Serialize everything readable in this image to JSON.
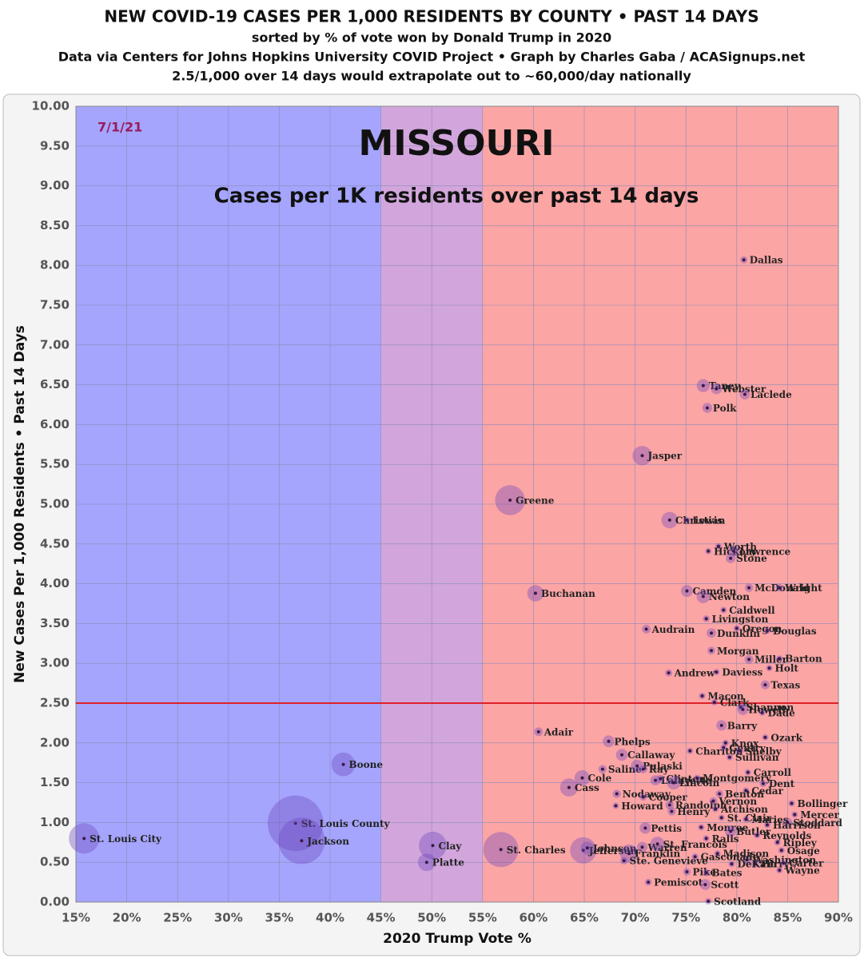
{
  "chart_data": {
    "type": "bubble",
    "title": "NEW COVID-19 CASES PER 1,000 RESIDENTS BY COUNTY • PAST 14 DAYS",
    "subtitles": [
      "sorted by % of vote won by Donald Trump in 2020",
      "Data via Centers for Johns Hopkins University COVID Project • Graph by Charles Gaba / ACASignups.net",
      "2.5/1,000 over 14 days would extrapolate out to ~60,000/day nationally"
    ],
    "annotations": {
      "date": "7/1/21",
      "state": "MISSOURI",
      "heading": "Cases per 1K residents over past 14 days"
    },
    "x_label": "2020 Trump Vote %",
    "y_label": "New Cases Per 1,000 Residents • Past 14 Days",
    "xlim": [
      15,
      90
    ],
    "ylim": [
      0,
      10
    ],
    "xticks": [
      {
        "value": 15,
        "label": "15%"
      },
      {
        "value": 20,
        "label": "20%"
      },
      {
        "value": 25,
        "label": "25%"
      },
      {
        "value": 30,
        "label": "30%"
      },
      {
        "value": 35,
        "label": "35%"
      },
      {
        "value": 40,
        "label": "40%"
      },
      {
        "value": 45,
        "label": "45%"
      },
      {
        "value": 50,
        "label": "50%"
      },
      {
        "value": 55,
        "label": "55%"
      },
      {
        "value": 60,
        "label": "60%"
      },
      {
        "value": 65,
        "label": "65%"
      },
      {
        "value": 70,
        "label": "70%"
      },
      {
        "value": 75,
        "label": "75%"
      },
      {
        "value": 80,
        "label": "80%"
      },
      {
        "value": 85,
        "label": "85%"
      },
      {
        "value": 90,
        "label": "90%"
      }
    ],
    "yticks": [
      {
        "value": 0,
        "label": "0.00"
      },
      {
        "value": 0.5,
        "label": "0.50"
      },
      {
        "value": 1,
        "label": "1.00"
      },
      {
        "value": 1.5,
        "label": "1.50"
      },
      {
        "value": 2,
        "label": "2.00"
      },
      {
        "value": 2.5,
        "label": "2.50"
      },
      {
        "value": 3,
        "label": "3.00"
      },
      {
        "value": 3.5,
        "label": "3.50"
      },
      {
        "value": 4,
        "label": "4.00"
      },
      {
        "value": 4.5,
        "label": "4.50"
      },
      {
        "value": 5,
        "label": "5.00"
      },
      {
        "value": 5.5,
        "label": "5.50"
      },
      {
        "value": 6,
        "label": "6.00"
      },
      {
        "value": 6.5,
        "label": "6.50"
      },
      {
        "value": 7,
        "label": "7.00"
      },
      {
        "value": 7.5,
        "label": "7.50"
      },
      {
        "value": 8,
        "label": "8.00"
      },
      {
        "value": 8.5,
        "label": "8.50"
      },
      {
        "value": 9,
        "label": "9.00"
      },
      {
        "value": 9.5,
        "label": "9.50"
      },
      {
        "value": 10,
        "label": "10.00"
      }
    ],
    "grid": true,
    "bands": [
      {
        "from": 15,
        "to": 45,
        "color": "#a5a5fd"
      },
      {
        "from": 45,
        "to": 55,
        "color": "#d2a6dc"
      },
      {
        "from": 55,
        "to": 90,
        "color": "#fca5a5"
      }
    ],
    "reference_line": {
      "value": 2.5,
      "color": "#e0202a"
    },
    "color": "rgba(110,70,190,0.38)",
    "labels": [
      "St. Louis City",
      "St. Louis County",
      "Jackson",
      "Boone",
      "Clay",
      "Platte",
      "St. Charles",
      "Greene",
      "Buchanan",
      "Adair",
      "Cass",
      "Cole",
      "Jefferson",
      "Johnson",
      "Phelps",
      "Callaway",
      "Saline",
      "Pulaski",
      "Ray",
      "Nodaway",
      "Howard",
      "Jasper",
      "Audrain",
      "Pettis",
      "Warren",
      "Franklin",
      "Ste. Genevieve",
      "Pemiscot",
      "Christian",
      "Lewis",
      "Andrew",
      "Camden",
      "Newton",
      "Lafayette",
      "Clinton",
      "Lincoln",
      "Cooper",
      "Randolph",
      "Henry",
      "Montgomery",
      "Chariton",
      "St. Francois",
      "Pike",
      "Bates",
      "Scott",
      "Scotland",
      "Taney",
      "Webster",
      "Polk",
      "Laclede",
      "Dallas",
      "Worth",
      "Hickory",
      "Lawrence",
      "Stone",
      "McDonald",
      "Wright",
      "Caldwell",
      "Livingston",
      "Dunklin",
      "Oregon",
      "Douglas",
      "Morgan",
      "Miller",
      "Barton",
      "Daviess",
      "Holt",
      "Texas",
      "Macon",
      "Clark",
      "Shannon",
      "Howell",
      "Dade",
      "Barry",
      "Ozark",
      "Knox",
      "Gentry",
      "Shelby",
      "Sullivan",
      "Carroll",
      "Dent",
      "Cedar",
      "Benton",
      "Vernon",
      "Atchison",
      "Bollinger",
      "Mercer",
      "Stoddard",
      "Harrison",
      "St. Clair",
      "Maries",
      "Monroe",
      "Ralls",
      "Butler",
      "Reynolds",
      "Ripley",
      "Osage",
      "Washington",
      "Perry",
      "Carter",
      "Wayne",
      "Madison",
      "Gasconade",
      "DeKalb"
    ],
    "x": [
      15.8,
      36.6,
      37.2,
      41.3,
      50.1,
      49.5,
      56.8,
      57.7,
      60.2,
      60.5,
      63.5,
      64.8,
      64.9,
      65.3,
      67.4,
      68.7,
      66.8,
      70.2,
      70.8,
      68.2,
      68.1,
      70.7,
      71.1,
      71.0,
      70.7,
      69.4,
      68.9,
      71.3,
      73.4,
      75.1,
      73.3,
      75.1,
      76.7,
      72.0,
      72.5,
      73.8,
      70.8,
      73.4,
      73.6,
      76.1,
      75.4,
      72.2,
      75.1,
      77.0,
      76.9,
      77.2,
      76.7,
      78.0,
      77.1,
      80.8,
      80.7,
      78.2,
      77.2,
      79.7,
      79.4,
      81.2,
      84.2,
      78.7,
      77.0,
      77.5,
      80.0,
      83.0,
      77.5,
      81.2,
      84.2,
      78.0,
      83.2,
      82.8,
      76.6,
      77.8,
      80.4,
      80.6,
      82.5,
      78.5,
      82.8,
      78.9,
      78.7,
      80.3,
      79.3,
      81.1,
      82.6,
      80.9,
      78.3,
      77.7,
      77.9,
      85.4,
      85.7,
      85.0,
      83.0,
      78.5,
      80.9,
      76.5,
      77.0,
      79.4,
      82.0,
      84.0,
      84.4,
      81.0,
      81.8,
      84.6,
      84.2,
      78.1,
      75.9,
      79.5
    ],
    "y": [
      0.8,
      0.99,
      0.77,
      1.73,
      0.71,
      0.5,
      0.66,
      5.05,
      3.88,
      2.14,
      1.44,
      1.56,
      0.65,
      0.68,
      2.02,
      1.85,
      1.67,
      1.71,
      1.67,
      1.36,
      1.21,
      5.61,
      3.43,
      0.93,
      0.69,
      0.61,
      0.52,
      0.25,
      4.8,
      4.8,
      2.88,
      3.91,
      3.84,
      1.53,
      1.55,
      1.5,
      1.32,
      1.22,
      1.14,
      1.56,
      1.9,
      0.73,
      0.38,
      0.37,
      0.22,
      0.01,
      6.49,
      6.45,
      6.21,
      6.38,
      8.07,
      4.47,
      4.41,
      4.41,
      4.32,
      3.95,
      3.95,
      3.67,
      3.56,
      3.38,
      3.44,
      3.41,
      3.16,
      3.05,
      3.06,
      2.89,
      2.94,
      2.73,
      2.59,
      2.51,
      2.45,
      2.42,
      2.38,
      2.22,
      2.07,
      2.0,
      1.94,
      1.9,
      1.82,
      1.63,
      1.49,
      1.4,
      1.36,
      1.27,
      1.17,
      1.24,
      1.1,
      1.0,
      0.97,
      1.06,
      1.04,
      0.94,
      0.8,
      0.89,
      0.84,
      0.75,
      0.65,
      0.53,
      0.48,
      0.49,
      0.4,
      0.61,
      0.57,
      0.48
    ],
    "sizes": [
      300,
      1000,
      700,
      180,
      250,
      100,
      400,
      290,
      87,
      25,
      105,
      77,
      225,
      54,
      45,
      45,
      23,
      52,
      23,
      22,
      10,
      122,
      25,
      42,
      36,
      104,
      18,
      16,
      88,
      10,
      17,
      46,
      58,
      33,
      20,
      59,
      17,
      25,
      22,
      11,
      7,
      67,
      18,
      16,
      38,
      5,
      55,
      39,
      32,
      35,
      17,
      2,
      9,
      38,
      31,
      23,
      18,
      9,
      15,
      29,
      11,
      13,
      20,
      25,
      12,
      8,
      4,
      26,
      15,
      7,
      8,
      40,
      8,
      36,
      9,
      4,
      7,
      6,
      6,
      9,
      16,
      14,
      19,
      20,
      5,
      12,
      4,
      29,
      8,
      9,
      9,
      9,
      10,
      43,
      6,
      13,
      13,
      25,
      19,
      6,
      13,
      12,
      15,
      12
    ]
  }
}
